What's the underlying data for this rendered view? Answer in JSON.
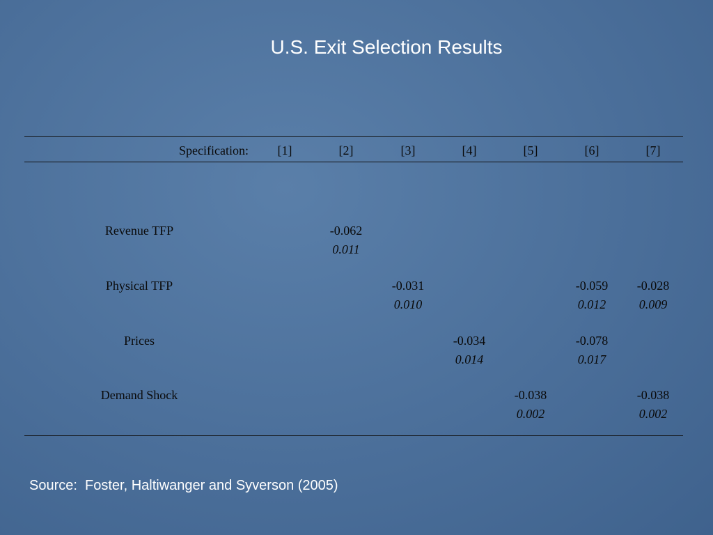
{
  "title": "U.S. Exit Selection Results",
  "table": {
    "header": [
      "Specification:",
      "[1]",
      "[2]",
      "[3]",
      "[4]",
      "[5]",
      "[6]",
      "[7]"
    ],
    "rows": [
      {
        "label": "Revenue TFP",
        "cells": [
          null,
          {
            "coef": "-0.062",
            "se": "0.011"
          },
          null,
          null,
          null,
          null,
          null
        ]
      },
      {
        "label": "Physical TFP",
        "cells": [
          null,
          null,
          {
            "coef": "-0.031",
            "se": "0.010"
          },
          null,
          null,
          {
            "coef": "-0.059",
            "se": "0.012"
          },
          {
            "coef": "-0.028",
            "se": "0.009"
          }
        ]
      },
      {
        "label": "Prices",
        "cells": [
          null,
          null,
          null,
          {
            "coef": "-0.034",
            "se": "0.014"
          },
          null,
          {
            "coef": "-0.078",
            "se": "0.017"
          },
          null
        ]
      },
      {
        "label": "Demand Shock",
        "cells": [
          null,
          null,
          null,
          null,
          {
            "coef": "-0.038",
            "se": "0.002"
          },
          null,
          {
            "coef": "-0.038",
            "se": "0.002"
          }
        ]
      }
    ]
  },
  "source": "Source:  Foster, Haltiwanger and Syverson (2005)"
}
